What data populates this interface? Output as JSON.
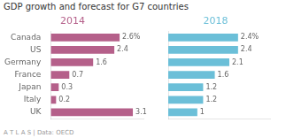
{
  "chart_data": {
    "type": "bar",
    "orientation": "horizontal",
    "title": "GDP growth and forecast for G7 countries",
    "annotations": [
      "A T L A S  |  Data: OECD"
    ],
    "categories": [
      "Canada",
      "US",
      "Germany",
      "France",
      "Japan",
      "Italy",
      "UK"
    ],
    "series": [
      {
        "name": "2014",
        "color": "#b5608a",
        "values": [
          2.6,
          2.4,
          1.6,
          0.7,
          0.3,
          0.2,
          3.1
        ],
        "value_labels": [
          "2.6%",
          "2.4",
          "1.6",
          "0.7",
          "0.3",
          "0.2",
          "3.1"
        ]
      },
      {
        "name": "2018",
        "color": "#6bbfd8",
        "values": [
          2.4,
          2.4,
          2.1,
          1.6,
          1.2,
          1.2,
          1.0
        ],
        "value_labels": [
          "2.4%",
          "2.4",
          "2.1",
          "1.6",
          "1.2",
          "1.2",
          "1"
        ]
      }
    ],
    "xlim": [
      0,
      3.5
    ],
    "data_labels": true,
    "tick_labels": "y",
    "grid": false
  }
}
